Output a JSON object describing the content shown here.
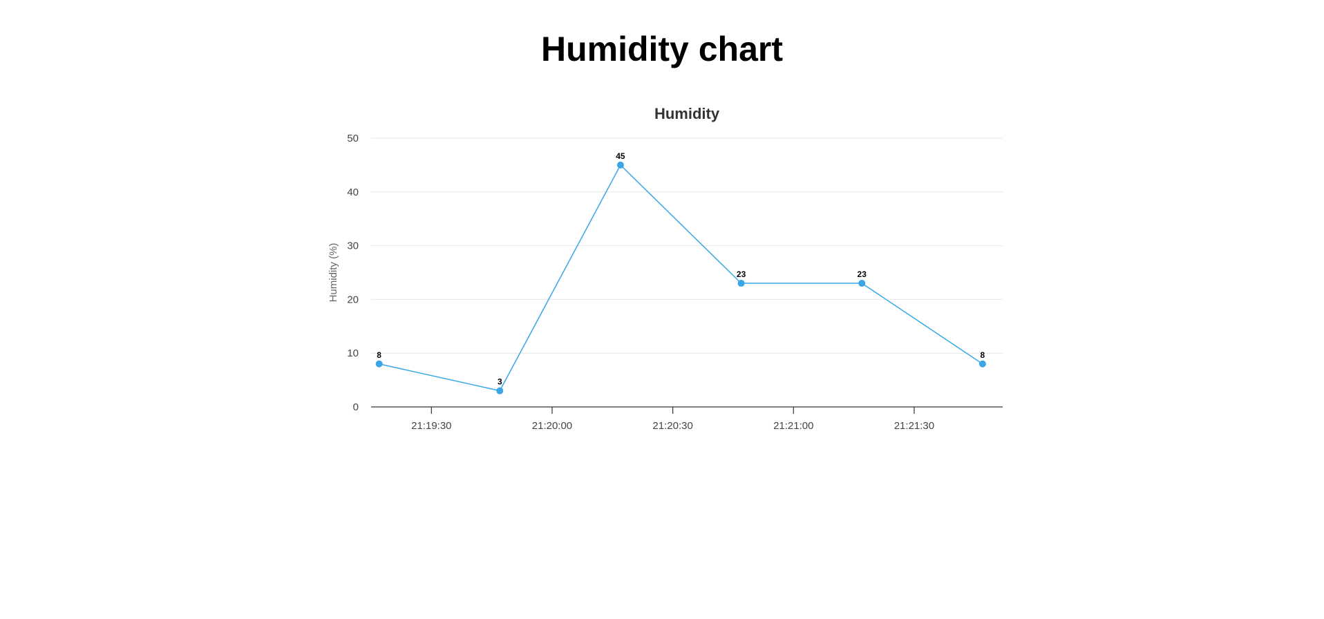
{
  "page": {
    "title": "Humidity chart"
  },
  "chart_data": {
    "type": "line",
    "title": "Humidity",
    "xlabel": "",
    "ylabel": "Humidity (%)",
    "ylim": [
      0,
      50
    ],
    "yticks": [
      0,
      10,
      20,
      30,
      40,
      50
    ],
    "xlim": [
      "21:19:15",
      "21:21:52"
    ],
    "xticks": [
      "21:19:30",
      "21:20:00",
      "21:20:30",
      "21:21:00",
      "21:21:30"
    ],
    "grid": true,
    "legend": "none",
    "colors": {
      "series": "#3aa6e6",
      "grid": "#e6e6e6",
      "axis": "#333333"
    },
    "series": [
      {
        "x": [
          "21:19:17",
          "21:19:47",
          "21:20:17",
          "21:20:47",
          "21:21:17",
          "21:21:47"
        ],
        "values": [
          8,
          3,
          45,
          23,
          23,
          8
        ]
      }
    ]
  }
}
